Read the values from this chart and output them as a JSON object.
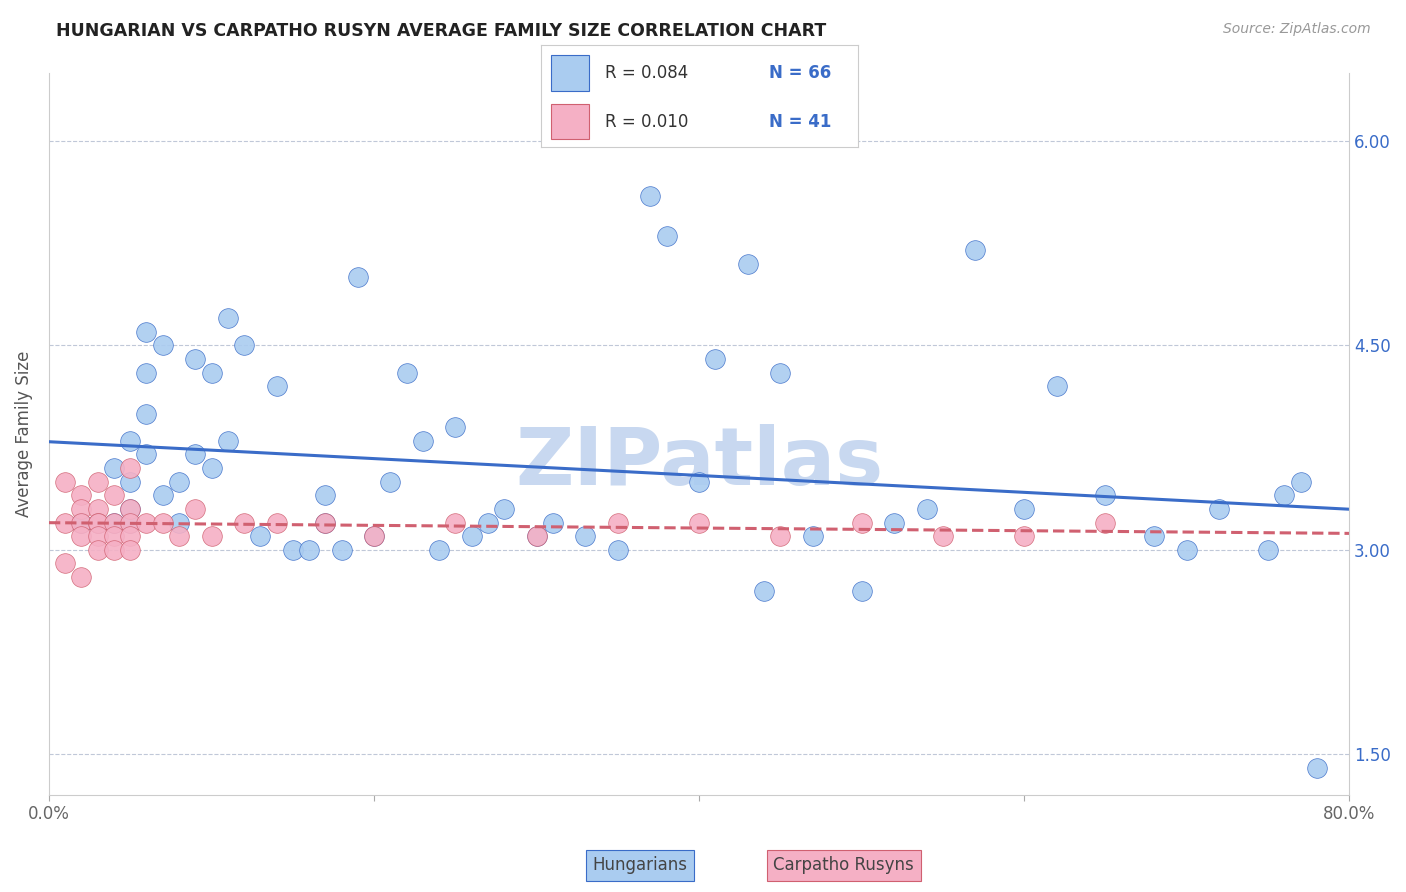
{
  "title": "HUNGARIAN VS CARPATHO RUSYN AVERAGE FAMILY SIZE CORRELATION CHART",
  "source": "Source: ZipAtlas.com",
  "ylabel": "Average Family Size",
  "xlim": [
    0.0,
    0.8
  ],
  "ylim": [
    1.2,
    6.5
  ],
  "yticks_right": [
    1.5,
    3.0,
    4.5,
    6.0
  ],
  "xticks": [
    0.0,
    0.2,
    0.4,
    0.6,
    0.8
  ],
  "xticklabels": [
    "0.0%",
    "",
    "",
    "",
    "80.0%"
  ],
  "legend_r1": "R = 0.084",
  "legend_n1": "N = 66",
  "legend_r2": "R = 0.010",
  "legend_n2": "N = 41",
  "color_hungarian": "#aaccf0",
  "color_rusyn": "#f5b0c5",
  "color_line_hungarian": "#3a6cc8",
  "color_line_rusyn": "#d06070",
  "watermark": "ZIPatlas",
  "watermark_color": "#c8d8f0",
  "background_color": "#ffffff",
  "hungarian_x": [
    0.02,
    0.03,
    0.04,
    0.04,
    0.05,
    0.05,
    0.05,
    0.05,
    0.06,
    0.06,
    0.06,
    0.06,
    0.07,
    0.07,
    0.08,
    0.08,
    0.09,
    0.09,
    0.1,
    0.1,
    0.11,
    0.11,
    0.12,
    0.13,
    0.14,
    0.15,
    0.16,
    0.17,
    0.17,
    0.18,
    0.19,
    0.2,
    0.21,
    0.22,
    0.23,
    0.24,
    0.25,
    0.26,
    0.27,
    0.28,
    0.3,
    0.31,
    0.33,
    0.35,
    0.37,
    0.38,
    0.4,
    0.41,
    0.43,
    0.44,
    0.45,
    0.47,
    0.5,
    0.52,
    0.54,
    0.57,
    0.6,
    0.62,
    0.65,
    0.68,
    0.7,
    0.72,
    0.75,
    0.76,
    0.77,
    0.78
  ],
  "hungarian_y": [
    3.2,
    3.2,
    3.6,
    3.2,
    3.8,
    3.5,
    3.3,
    3.2,
    4.6,
    4.3,
    4.0,
    3.7,
    4.5,
    3.4,
    3.5,
    3.2,
    4.4,
    3.7,
    4.3,
    3.6,
    4.7,
    3.8,
    4.5,
    3.1,
    4.2,
    3.0,
    3.0,
    3.4,
    3.2,
    3.0,
    5.0,
    3.1,
    3.5,
    4.3,
    3.8,
    3.0,
    3.9,
    3.1,
    3.2,
    3.3,
    3.1,
    3.2,
    3.1,
    3.0,
    5.6,
    5.3,
    3.5,
    4.4,
    5.1,
    2.7,
    4.3,
    3.1,
    2.7,
    3.2,
    3.3,
    5.2,
    3.3,
    4.2,
    3.4,
    3.1,
    3.0,
    3.3,
    3.0,
    3.4,
    3.5,
    1.4
  ],
  "rusyn_x": [
    0.01,
    0.01,
    0.01,
    0.02,
    0.02,
    0.02,
    0.02,
    0.02,
    0.03,
    0.03,
    0.03,
    0.03,
    0.03,
    0.03,
    0.04,
    0.04,
    0.04,
    0.04,
    0.05,
    0.05,
    0.05,
    0.05,
    0.05,
    0.06,
    0.07,
    0.08,
    0.09,
    0.1,
    0.12,
    0.14,
    0.17,
    0.2,
    0.25,
    0.3,
    0.35,
    0.4,
    0.45,
    0.5,
    0.55,
    0.6,
    0.65
  ],
  "rusyn_y": [
    3.5,
    3.2,
    2.9,
    3.4,
    3.3,
    3.2,
    3.1,
    2.8,
    3.5,
    3.3,
    3.2,
    3.2,
    3.1,
    3.0,
    3.4,
    3.2,
    3.1,
    3.0,
    3.6,
    3.3,
    3.2,
    3.1,
    3.0,
    3.2,
    3.2,
    3.1,
    3.3,
    3.1,
    3.2,
    3.2,
    3.2,
    3.1,
    3.2,
    3.1,
    3.2,
    3.2,
    3.1,
    3.2,
    3.1,
    3.1,
    3.2
  ]
}
